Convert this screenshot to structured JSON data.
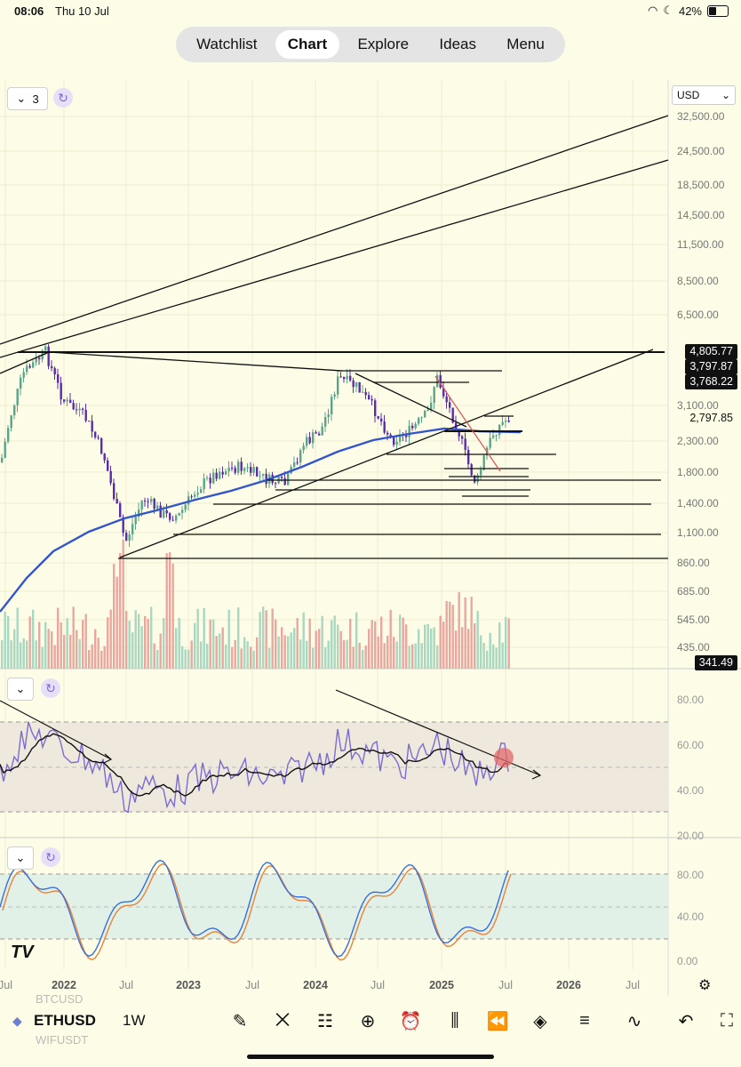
{
  "status": {
    "time": "08:06",
    "date": "Thu 10 Jul",
    "battery": "42%"
  },
  "nav": {
    "tabs": [
      "Watchlist",
      "Chart",
      "Explore",
      "Ideas",
      "Menu"
    ],
    "active": "Chart"
  },
  "chart": {
    "indicator_count": "3",
    "currency": "USD",
    "price_scale": [
      "32,500.00",
      "24,500.00",
      "18,500.00",
      "14,500.00",
      "11,500.00",
      "8,500.00",
      "6,500.00",
      "3,100.00",
      "2,300.00",
      "1,800.00",
      "1,400.00",
      "1,100.00",
      "860.00",
      "685.00",
      "545.00",
      "435.00"
    ],
    "price_tags": {
      "t1": "4,805.77",
      "t2": "3,797.87",
      "t3": "3,768.22",
      "current": "2,797.85",
      "volume": "341.49"
    },
    "rsi_scale": [
      "80.00",
      "60.00",
      "40.00",
      "20.00"
    ],
    "stoch_scale": [
      "80.00",
      "40.00",
      "0.00"
    ],
    "time_axis": [
      "Jul",
      "2022",
      "Jul",
      "2023",
      "Jul",
      "2024",
      "Jul",
      "2025",
      "Jul",
      "2026",
      "Jul"
    ],
    "watermark": "TV"
  },
  "toolbar": {
    "symbol": "ETHUSD",
    "interval": "1W",
    "ghost_above": "BTCUSD",
    "ghost_below": "WIFUSDT"
  },
  "colors": {
    "bg": "#fdfce6",
    "ma": "#3355cc",
    "rsi": "#7e6bd1",
    "stochK": "#3a6fd8",
    "stochD": "#e8833a",
    "up": "#5aa58a",
    "down": "#5a2ea6",
    "vol_up": "#a8d8c2",
    "vol_down": "#e9a7a0",
    "rsi_marker": "#e46a6a"
  }
}
